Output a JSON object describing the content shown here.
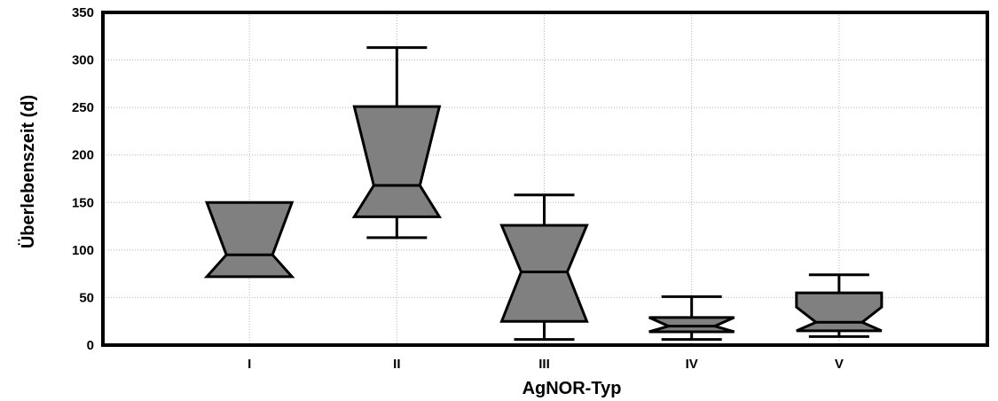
{
  "chart_data": {
    "type": "box",
    "title": "",
    "xlabel": "AgNOR-Typ",
    "ylabel": "Überlebenszeit (d)",
    "ylim": [
      0,
      350
    ],
    "yticks": [
      0,
      50,
      100,
      150,
      200,
      250,
      300,
      350
    ],
    "grid": true,
    "notched": true,
    "categories": [
      "I",
      "II",
      "III",
      "IV",
      "V"
    ],
    "boxes": [
      {
        "category": "I",
        "whisker_low": null,
        "q1": 72,
        "median": 95,
        "q3": 150,
        "whisker_high": null,
        "notch_low": 72,
        "notch_high": 150
      },
      {
        "category": "II",
        "whisker_low": 113,
        "q1": 135,
        "median": 168,
        "q3": 251,
        "whisker_high": 313,
        "notch_low": 135,
        "notch_high": 251
      },
      {
        "category": "III",
        "whisker_low": 6,
        "q1": 25,
        "median": 77,
        "q3": 126,
        "whisker_high": 158,
        "notch_low": 25,
        "notch_high": 126
      },
      {
        "category": "IV",
        "whisker_low": 6,
        "q1": 14,
        "median": 20,
        "q3": 29,
        "whisker_high": 51,
        "notch_low": 14,
        "notch_high": 29
      },
      {
        "category": "V",
        "whisker_low": 9,
        "q1": 15,
        "median": 24,
        "q3": 55,
        "whisker_high": 74,
        "notch_low": 15,
        "notch_high": 40
      }
    ]
  }
}
